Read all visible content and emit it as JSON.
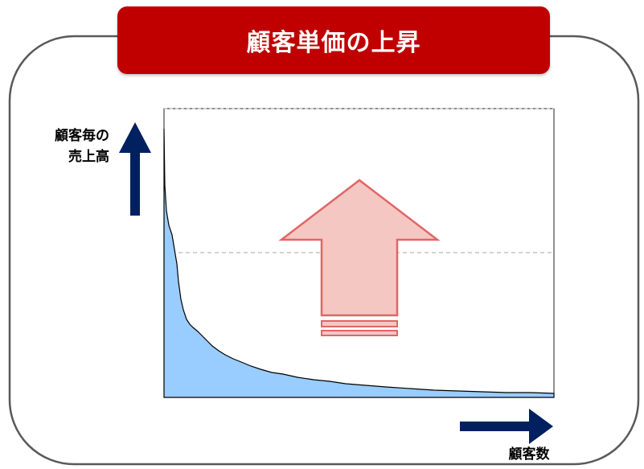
{
  "title": "顧客単価の上昇",
  "y_axis_label": {
    "line1": "顧客毎の",
    "line2": "売上高"
  },
  "x_axis_label": "顧客数",
  "colors": {
    "banner": "#c00000",
    "frame": "#595959",
    "area_fill": "#99ccff",
    "axis_arrow": "#002060",
    "up_arrow_fill": "#f4c7c3",
    "up_arrow_stroke": "#e06666",
    "dashed_line": "#a6a6a6"
  },
  "icons": [
    "up-arrow-icon",
    "right-arrow-icon",
    "big-up-arrow-icon"
  ]
}
